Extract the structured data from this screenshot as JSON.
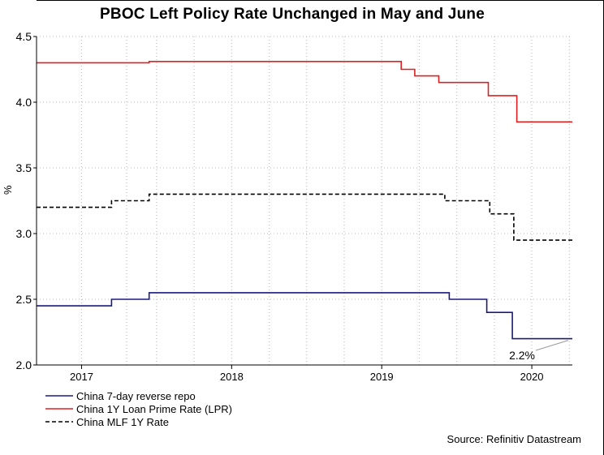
{
  "chart_data": {
    "type": "line",
    "title": "PBOC Left Policy Rate Unchanged in May and June",
    "xlabel": "",
    "ylabel": "%",
    "ylim": [
      2.0,
      4.5
    ],
    "yticks": [
      "4.5",
      "4.0",
      "3.5",
      "3.0",
      "2.5",
      "2.0"
    ],
    "ytick_values": [
      4.5,
      4.0,
      3.5,
      3.0,
      2.5,
      2.0
    ],
    "xlim": [
      2016.7,
      2020.27
    ],
    "xticks": [
      {
        "label": "2017",
        "pos": 2017.0
      },
      {
        "label": "2018",
        "pos": 2018.0
      },
      {
        "label": "2019",
        "pos": 2019.0
      },
      {
        "label": "2020",
        "pos": 2020.0
      }
    ],
    "gridlines_x": [
      2016.7,
      2017.3,
      2017.5,
      2017.75,
      2018.25,
      2018.5,
      2018.75,
      2019.25,
      2019.5,
      2019.75,
      2020.25
    ],
    "series": [
      {
        "name": "China 7-day reverse repo",
        "color": "#1a1a80",
        "dash": "solid",
        "points": [
          [
            2016.7,
            2.45
          ],
          [
            2017.2,
            2.45
          ],
          [
            2017.2,
            2.5
          ],
          [
            2017.45,
            2.5
          ],
          [
            2017.45,
            2.55
          ],
          [
            2019.45,
            2.55
          ],
          [
            2019.45,
            2.5
          ],
          [
            2019.7,
            2.5
          ],
          [
            2019.7,
            2.4
          ],
          [
            2019.87,
            2.4
          ],
          [
            2019.87,
            2.2
          ],
          [
            2020.27,
            2.2
          ]
        ]
      },
      {
        "name": "China 1Y Loan Prime Rate (LPR)",
        "color": "#e02020",
        "dash": "solid",
        "points": [
          [
            2016.7,
            4.3
          ],
          [
            2017.45,
            4.3
          ],
          [
            2017.45,
            4.31
          ],
          [
            2019.13,
            4.31
          ],
          [
            2019.13,
            4.25
          ],
          [
            2019.22,
            4.25
          ],
          [
            2019.22,
            4.2
          ],
          [
            2019.38,
            4.2
          ],
          [
            2019.38,
            4.15
          ],
          [
            2019.71,
            4.15
          ],
          [
            2019.71,
            4.05
          ],
          [
            2019.9,
            4.05
          ],
          [
            2019.9,
            3.85
          ],
          [
            2020.27,
            3.85
          ]
        ]
      },
      {
        "name": "China MLF 1Y Rate",
        "color": "#000000",
        "dash": "dashed",
        "points": [
          [
            2016.7,
            3.2
          ],
          [
            2017.2,
            3.2
          ],
          [
            2017.2,
            3.25
          ],
          [
            2017.45,
            3.25
          ],
          [
            2017.45,
            3.3
          ],
          [
            2019.42,
            3.3
          ],
          [
            2019.42,
            3.25
          ],
          [
            2019.72,
            3.25
          ],
          [
            2019.72,
            3.15
          ],
          [
            2019.88,
            3.15
          ],
          [
            2019.88,
            2.95
          ],
          [
            2020.27,
            2.95
          ]
        ]
      }
    ],
    "annotations": [
      {
        "text": "2.2%",
        "x": 2020.0,
        "y": 2.2
      }
    ],
    "source": "Source: Refinitiv Datastream"
  }
}
